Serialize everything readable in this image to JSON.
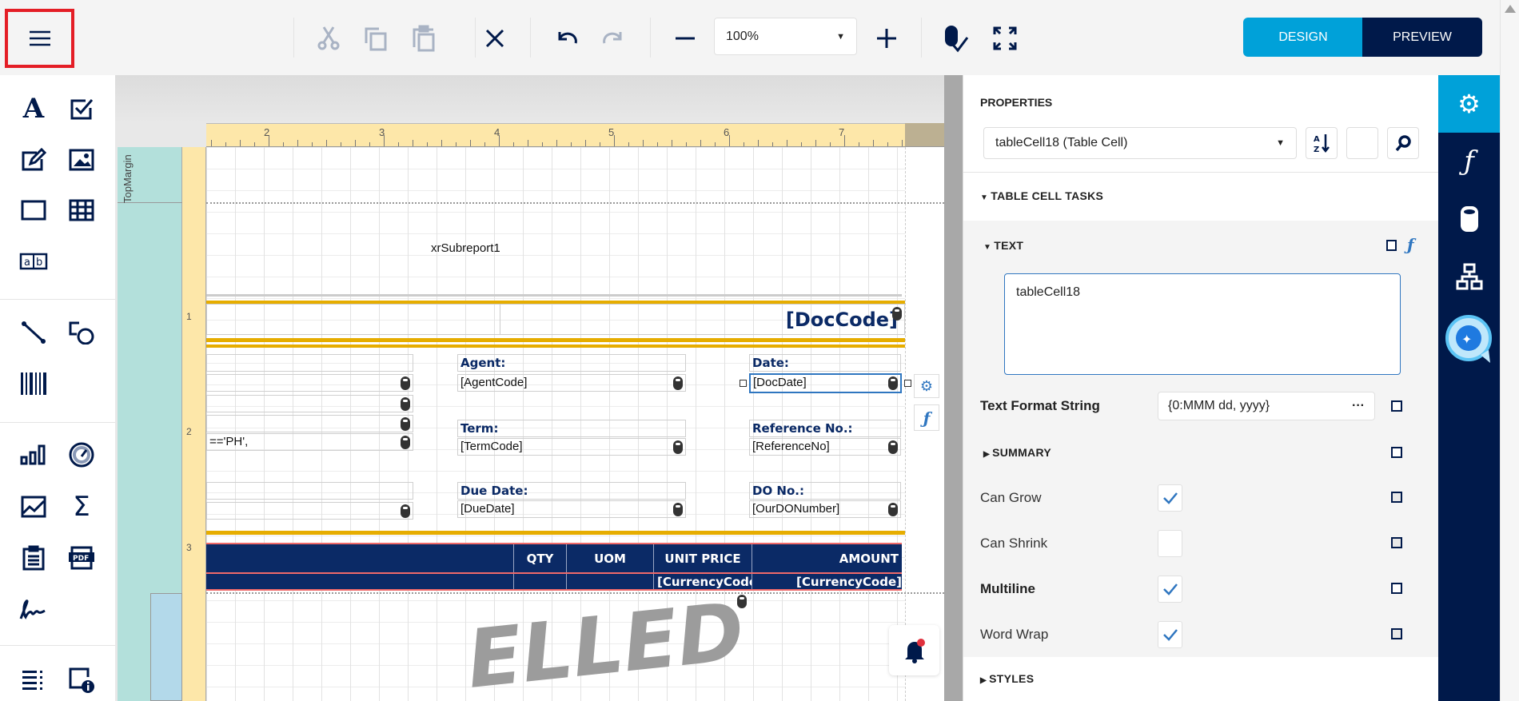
{
  "toolbar": {
    "menu_icon": "hamburger-icon",
    "icons": [
      "cut-icon",
      "copy-icon",
      "paste-icon",
      "delete-icon",
      "undo-icon",
      "redo-icon",
      "zoom-out-icon",
      "zoom-in-icon",
      "validate-bindings-icon",
      "fullscreen-icon"
    ],
    "zoom_value": "100%",
    "design_label": "DESIGN",
    "preview_label": "PREVIEW",
    "colors": {
      "design": "#00a1d9",
      "preview": "#00194a",
      "highlight": "#e41e26"
    }
  },
  "toolbox": {
    "items": [
      "label",
      "checkbox",
      "rich-text",
      "picture",
      "panel",
      "table",
      "character-comb",
      "line",
      "shape",
      "barcode",
      "chart",
      "gauge",
      "sparkline",
      "summary",
      "table-of-contents",
      "pdf-content",
      "signature",
      "page-info",
      "page-break-info"
    ]
  },
  "canvas": {
    "ruler_h": [
      "2",
      "3",
      "4",
      "5",
      "6",
      "7"
    ],
    "ruler_v": [
      "1",
      "2",
      "3"
    ],
    "band_label": "TopMargin",
    "subreport": "xrSubreport1",
    "doc_code": "[DocCode]",
    "fragment": "=='PH',",
    "fields": [
      {
        "label": "Agent:",
        "value": "[AgentCode]"
      },
      {
        "label": "Date:",
        "value": "[DocDate]"
      },
      {
        "label": "Term:",
        "value": "[TermCode]"
      },
      {
        "label": "Reference No.:",
        "value": "[ReferenceNo]"
      },
      {
        "label": "Due Date:",
        "value": "[DueDate]"
      },
      {
        "label": "DO No.:",
        "value": "[OurDONumber]"
      }
    ],
    "table_headers": [
      "",
      "QTY",
      "UOM",
      "UNIT PRICE",
      "AMOUNT"
    ],
    "table_row": [
      "",
      "",
      "",
      "[CurrencyCode]",
      "[CurrencyCode]"
    ],
    "watermark": "ELLED",
    "colors": {
      "table": "#0b2a66",
      "gold": "#e6ad00",
      "ruler": "#fde7a9",
      "band": "#b3e0db"
    }
  },
  "properties": {
    "title": "PROPERTIES",
    "selected_component": "tableCell18 (Table Cell)",
    "tasks_header": "TABLE CELL TASKS",
    "text_header": "TEXT",
    "text_value": "tableCell18",
    "format_label": "Text Format String",
    "format_value": "{0:MMM dd, yyyy}",
    "format_more": "···",
    "summary_header": "SUMMARY",
    "checks": [
      {
        "label": "Can Grow",
        "checked": true
      },
      {
        "label": "Can Shrink",
        "checked": false
      },
      {
        "label": "Multiline",
        "checked": true
      },
      {
        "label": "Word Wrap",
        "checked": true
      }
    ],
    "styles_header": "STYLES"
  },
  "right_bar": {
    "items": [
      "properties-gear-icon",
      "expressions-icon",
      "field-list-icon",
      "report-explorer-icon",
      "ai-assistant-icon"
    ],
    "active": "properties-gear-icon"
  }
}
